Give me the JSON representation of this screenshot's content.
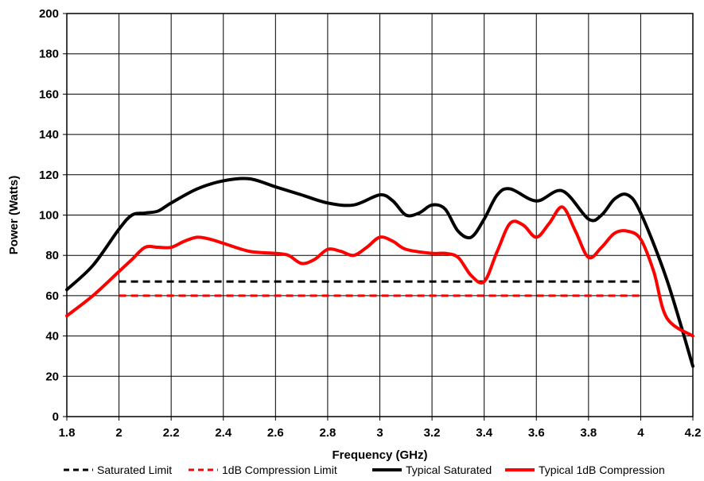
{
  "chart_data": {
    "type": "line",
    "title": "",
    "xlabel": "Frequency (GHz)",
    "ylabel": "Power (Watts)",
    "xlim": [
      1.8,
      4.2
    ],
    "ylim": [
      0,
      200
    ],
    "x_ticks": [
      "1.8",
      "2",
      "2.2",
      "2.4",
      "2.6",
      "2.8",
      "3",
      "3.2",
      "3.4",
      "3.6",
      "3.8",
      "4",
      "4.2"
    ],
    "y_ticks": [
      "0",
      "20",
      "40",
      "60",
      "80",
      "100",
      "120",
      "140",
      "160",
      "180",
      "200"
    ],
    "grid": true,
    "legend_position": "bottom",
    "series": [
      {
        "name": "Saturated Limit",
        "color": "#000000",
        "style": "dashed",
        "points": [
          [
            2.0,
            67
          ],
          [
            4.0,
            67
          ]
        ]
      },
      {
        "name": "1dB Compression Limit",
        "color": "#ff0000",
        "style": "dashed",
        "points": [
          [
            2.0,
            60
          ],
          [
            4.0,
            60
          ]
        ]
      },
      {
        "name": "Typical Saturated",
        "color": "#000000",
        "style": "solid",
        "points": [
          [
            1.8,
            63
          ],
          [
            1.9,
            75
          ],
          [
            2.0,
            93
          ],
          [
            2.05,
            100
          ],
          [
            2.1,
            101
          ],
          [
            2.15,
            102
          ],
          [
            2.2,
            106
          ],
          [
            2.3,
            113
          ],
          [
            2.4,
            117
          ],
          [
            2.5,
            118
          ],
          [
            2.6,
            114
          ],
          [
            2.7,
            110
          ],
          [
            2.8,
            106
          ],
          [
            2.9,
            105
          ],
          [
            3.0,
            110
          ],
          [
            3.05,
            107
          ],
          [
            3.1,
            100
          ],
          [
            3.15,
            101
          ],
          [
            3.2,
            105
          ],
          [
            3.25,
            103
          ],
          [
            3.3,
            92
          ],
          [
            3.35,
            89
          ],
          [
            3.4,
            98
          ],
          [
            3.45,
            110
          ],
          [
            3.5,
            113
          ],
          [
            3.6,
            107
          ],
          [
            3.7,
            112
          ],
          [
            3.8,
            98
          ],
          [
            3.85,
            100
          ],
          [
            3.9,
            108
          ],
          [
            3.95,
            110
          ],
          [
            4.0,
            101
          ],
          [
            4.1,
            68
          ],
          [
            4.2,
            25
          ]
        ]
      },
      {
        "name": "Typical 1dB Compression",
        "color": "#ff0000",
        "style": "solid",
        "points": [
          [
            1.8,
            50
          ],
          [
            1.9,
            60
          ],
          [
            2.0,
            72
          ],
          [
            2.05,
            78
          ],
          [
            2.1,
            84
          ],
          [
            2.15,
            84
          ],
          [
            2.2,
            84
          ],
          [
            2.25,
            87
          ],
          [
            2.3,
            89
          ],
          [
            2.35,
            88
          ],
          [
            2.4,
            86
          ],
          [
            2.5,
            82
          ],
          [
            2.6,
            81
          ],
          [
            2.65,
            80
          ],
          [
            2.7,
            76
          ],
          [
            2.75,
            78
          ],
          [
            2.8,
            83
          ],
          [
            2.85,
            82
          ],
          [
            2.9,
            80
          ],
          [
            2.95,
            84
          ],
          [
            3.0,
            89
          ],
          [
            3.05,
            87
          ],
          [
            3.1,
            83
          ],
          [
            3.2,
            81
          ],
          [
            3.25,
            81
          ],
          [
            3.3,
            79
          ],
          [
            3.35,
            70
          ],
          [
            3.4,
            67
          ],
          [
            3.45,
            82
          ],
          [
            3.5,
            96
          ],
          [
            3.55,
            95
          ],
          [
            3.6,
            89
          ],
          [
            3.65,
            96
          ],
          [
            3.7,
            104
          ],
          [
            3.75,
            92
          ],
          [
            3.8,
            79
          ],
          [
            3.85,
            84
          ],
          [
            3.9,
            91
          ],
          [
            3.95,
            92
          ],
          [
            4.0,
            88
          ],
          [
            4.05,
            72
          ],
          [
            4.1,
            49
          ],
          [
            4.2,
            40
          ]
        ]
      }
    ]
  }
}
